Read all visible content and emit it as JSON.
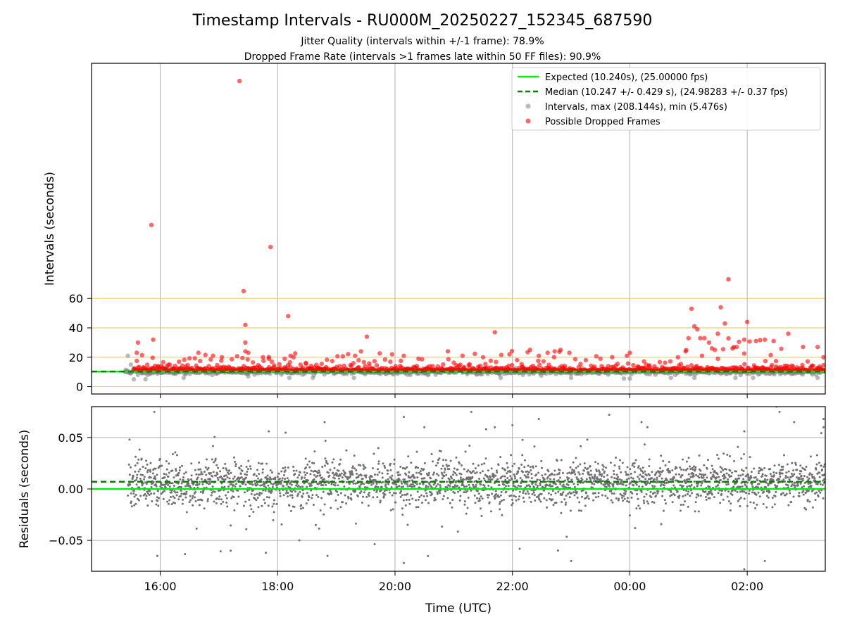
{
  "chart_data": [
    {
      "type": "scatter",
      "title": "Timestamp Intervals - RU000M_20250227_152345_687590",
      "subtitle_lines": [
        "Jitter Quality (intervals within +/-1 frame): 78.9%",
        "Dropped Frame Rate (intervals >1 frames late within 50 FF files): 90.9%"
      ],
      "xlabel": "",
      "ylabel": "Intervals (seconds)",
      "x_range_hours_utc": [
        14.83,
        27.33
      ],
      "ylim": [
        -5,
        220
      ],
      "yticks": [
        0,
        20,
        40,
        60
      ],
      "ytick_labels": [
        "0",
        "20",
        "40",
        "60"
      ],
      "horizontal_reference_lines": [
        0,
        20,
        40,
        60
      ],
      "reference_line_color": "#f5c342",
      "grid": "vertical",
      "legend_position": "upper right",
      "legend": [
        {
          "label": "Expected (10.240s), (25.00000 fps)",
          "style": "solid-line",
          "color": "#00ee00"
        },
        {
          "label": "Median (10.247 +/- 0.429 s), (24.98283 +/- 0.37 fps)",
          "style": "dashed-line",
          "color": "#007f00"
        },
        {
          "label": "Intervals, max (208.144s), min (5.476s)",
          "style": "marker",
          "color": "#808080"
        },
        {
          "label": "Possible Dropped Frames",
          "style": "marker",
          "color": "#ff0000"
        }
      ],
      "series": [
        {
          "name": "Expected (10.240s), (25.00000 fps)",
          "kind": "hline",
          "value": 10.24,
          "color": "#00ee00"
        },
        {
          "name": "Median (10.247 +/- 0.429 s), (24.98283 +/- 0.37 fps)",
          "kind": "hline",
          "value": 10.247,
          "color": "#007f00"
        },
        {
          "name": "Intervals, max (208.144s), min (5.476s)",
          "kind": "scatter",
          "color": "#808080",
          "time_start_hour": 15.4,
          "time_end_hour": 27.33,
          "typical_value": 10.24,
          "points": [
            [
              15.45,
              21
            ],
            [
              15.5,
              15
            ],
            [
              15.55,
              5
            ],
            [
              15.62,
              8
            ],
            [
              15.75,
              5
            ],
            [
              16.4,
              6
            ],
            [
              17.5,
              7
            ],
            [
              18.2,
              6
            ],
            [
              18.6,
              6
            ],
            [
              19.3,
              6
            ],
            [
              21.8,
              6
            ],
            [
              23.0,
              6
            ],
            [
              23.9,
              5.5
            ],
            [
              24.0,
              5.5
            ],
            [
              24.7,
              6
            ],
            [
              25.1,
              6
            ],
            [
              25.8,
              6
            ],
            [
              26.1,
              6
            ],
            [
              27.2,
              6
            ]
          ]
        },
        {
          "name": "Possible Dropped Frames",
          "kind": "scatter",
          "color": "#ff0000",
          "points": [
            [
              15.6,
              23
            ],
            [
              15.62,
              30
            ],
            [
              15.85,
              110
            ],
            [
              15.88,
              32
            ],
            [
              16.65,
              23
            ],
            [
              16.9,
              21
            ],
            [
              17.05,
              20
            ],
            [
              17.35,
              208
            ],
            [
              17.42,
              65
            ],
            [
              17.45,
              42
            ],
            [
              17.45,
              30
            ],
            [
              17.45,
              24
            ],
            [
              17.5,
              23
            ],
            [
              17.6,
              13
            ],
            [
              17.75,
              20
            ],
            [
              17.85,
              19
            ],
            [
              17.88,
              95
            ],
            [
              17.9,
              17
            ],
            [
              18.18,
              48
            ],
            [
              18.22,
              21
            ],
            [
              18.27,
              20
            ],
            [
              19.32,
              21
            ],
            [
              19.42,
              24
            ],
            [
              19.52,
              34
            ],
            [
              19.95,
              22
            ],
            [
              20.15,
              21
            ],
            [
              20.4,
              19
            ],
            [
              20.9,
              24
            ],
            [
              21.15,
              21
            ],
            [
              21.5,
              20
            ],
            [
              21.7,
              37
            ],
            [
              21.95,
              22
            ],
            [
              22.3,
              25
            ],
            [
              22.45,
              21
            ],
            [
              22.6,
              23
            ],
            [
              22.72,
              24
            ],
            [
              22.82,
              25
            ],
            [
              22.97,
              23
            ],
            [
              23.5,
              19
            ],
            [
              23.95,
              21
            ],
            [
              24.0,
              23
            ],
            [
              24.82,
              20
            ],
            [
              24.95,
              24
            ],
            [
              25.0,
              33
            ],
            [
              25.05,
              53
            ],
            [
              25.1,
              41
            ],
            [
              25.15,
              39
            ],
            [
              25.2,
              33
            ],
            [
              25.27,
              33
            ],
            [
              25.35,
              30
            ],
            [
              25.4,
              26
            ],
            [
              25.45,
              25
            ],
            [
              25.5,
              36
            ],
            [
              25.55,
              54
            ],
            [
              25.62,
              43
            ],
            [
              25.68,
              73
            ],
            [
              25.75,
              26
            ],
            [
              25.82,
              27
            ],
            [
              25.95,
              32
            ],
            [
              26.0,
              44
            ],
            [
              26.15,
              31
            ],
            [
              26.3,
              32
            ],
            [
              26.45,
              31
            ],
            [
              26.7,
              36
            ],
            [
              26.95,
              27
            ],
            [
              27.2,
              27
            ],
            [
              27.3,
              20
            ]
          ]
        }
      ]
    },
    {
      "type": "scatter",
      "xlabel": "Time (UTC)",
      "ylabel": "Residuals (seconds)",
      "xticks_hours": [
        16,
        18,
        20,
        22,
        24,
        26
      ],
      "xtick_labels": [
        "16:00",
        "18:00",
        "20:00",
        "22:00",
        "00:00",
        "02:00"
      ],
      "x_range_hours_utc": [
        14.83,
        27.33
      ],
      "ylim": [
        -0.08,
        0.08
      ],
      "yticks": [
        -0.05,
        0.0,
        0.05
      ],
      "ytick_labels": [
        "−0.05",
        "0.00",
        "0.05"
      ],
      "grid": "both",
      "series": [
        {
          "name": "Expected (10.240s), (25.00000 fps)",
          "kind": "hline",
          "value": 0.0,
          "color": "#00ee00"
        },
        {
          "name": "Median (10.247 +/- 0.429 s), (24.98283 +/- 0.37 fps)",
          "kind": "hline",
          "value": 0.007,
          "color": "#007f00"
        },
        {
          "name": "Residuals",
          "kind": "scatter",
          "color": "#707070",
          "time_start_hour": 15.45,
          "time_end_hour": 27.33,
          "typical_spread": 0.02,
          "notable_points": [
            [
              15.9,
              0.075
            ],
            [
              15.95,
              -0.065
            ],
            [
              17.85,
              0.056
            ],
            [
              17.8,
              -0.062
            ],
            [
              17.2,
              -0.06
            ],
            [
              18.8,
              0.065
            ],
            [
              18.85,
              -0.065
            ],
            [
              20.15,
              0.07
            ],
            [
              20.5,
              0.06
            ],
            [
              20.15,
              -0.072
            ],
            [
              21.3,
              0.075
            ],
            [
              21.55,
              0.058
            ],
            [
              21.7,
              0.06
            ],
            [
              22.0,
              0.062
            ],
            [
              22.45,
              0.068
            ],
            [
              23.0,
              -0.07
            ],
            [
              24.2,
              0.065
            ],
            [
              24.3,
              0.06
            ],
            [
              25.95,
              0.056
            ],
            [
              26.5,
              0.08
            ],
            [
              26.55,
              0.075
            ],
            [
              26.8,
              0.065
            ],
            [
              27.3,
              0.068
            ],
            [
              27.3,
              0.06
            ],
            [
              25.95,
              -0.078
            ],
            [
              26.3,
              -0.07
            ]
          ]
        }
      ]
    }
  ]
}
